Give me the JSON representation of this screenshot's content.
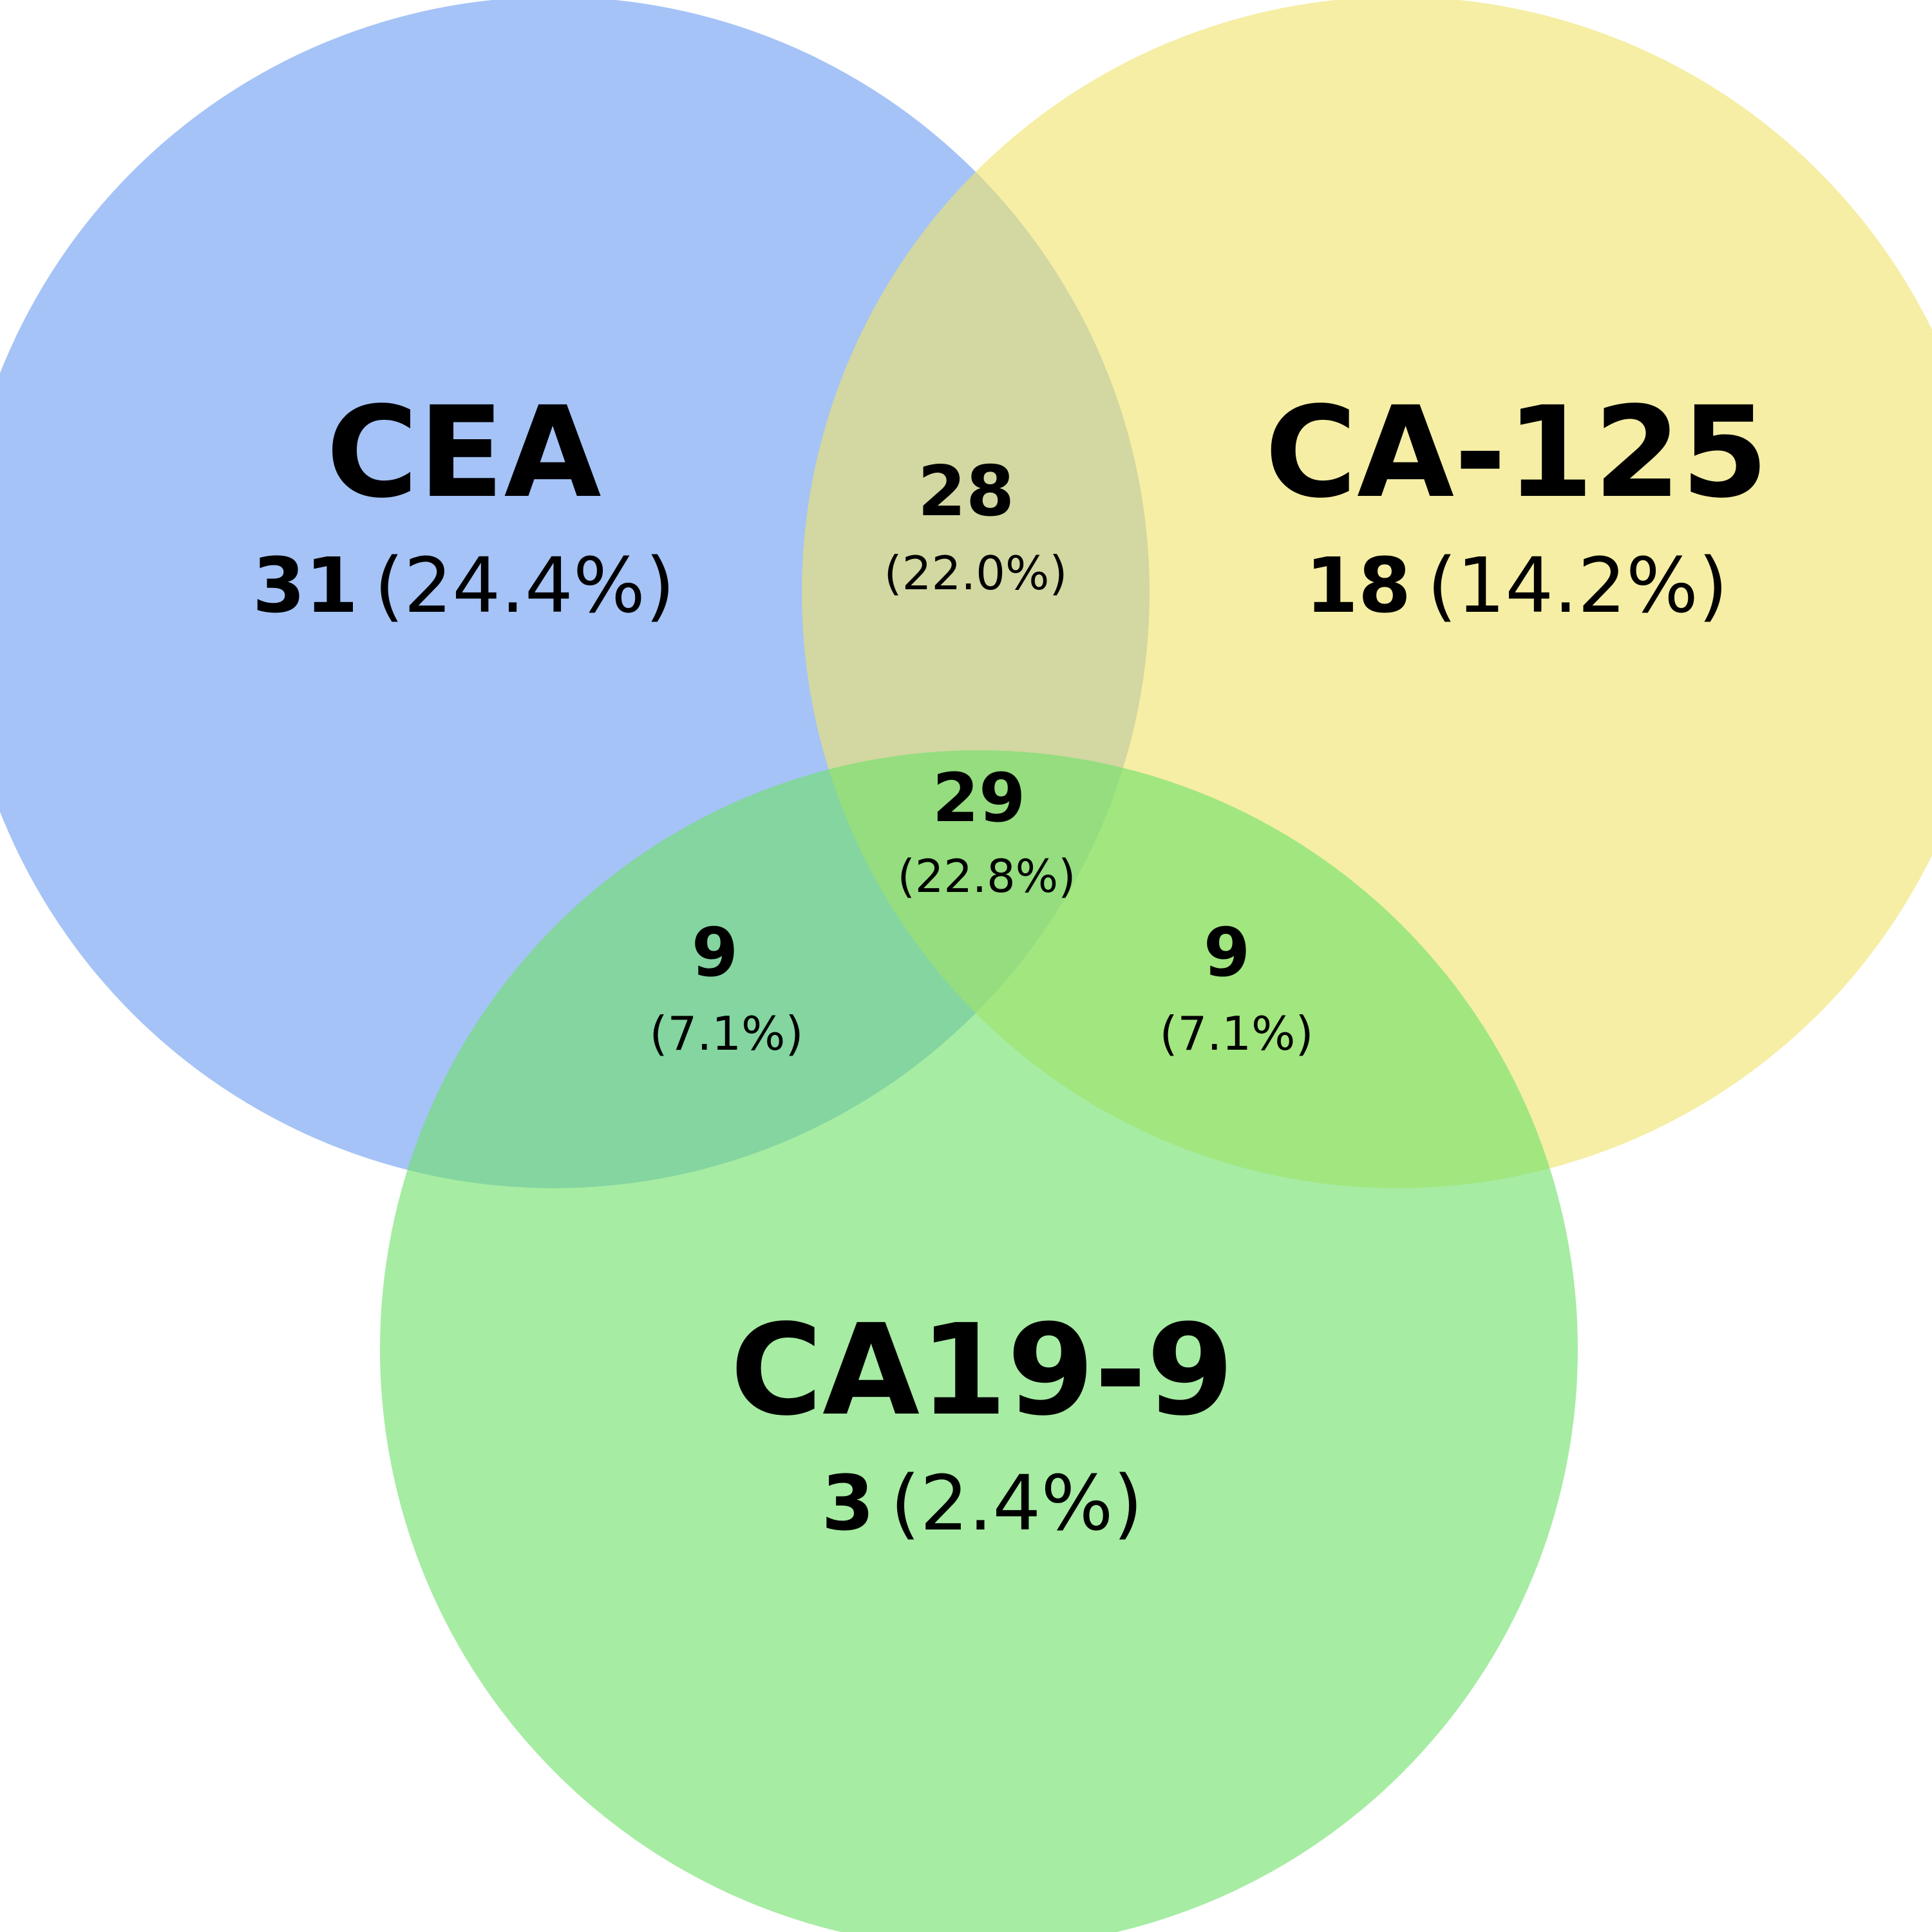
{
  "colors": {
    "CEA": "#6d9ef1",
    "CA-125": "#efe36c",
    "CA19-9": "#6fe06a",
    "text": "#000000",
    "background": "#ffffff"
  },
  "sets": {
    "cea": {
      "label": "CEA",
      "count": "31",
      "pct": "(24.4%)"
    },
    "ca125": {
      "label": "CA-125",
      "count": "18",
      "pct": "(14.2%)"
    },
    "ca199": {
      "label": "CA19-9",
      "count": "3",
      "pct": "(2.4%)"
    }
  },
  "intersections": {
    "cea_ca125": {
      "count": "28",
      "pct": "(22.0%)"
    },
    "all_three": {
      "count": "29",
      "pct": "(22.8%)"
    },
    "cea_ca199": {
      "count": "9",
      "pct": "(7.1%)"
    },
    "ca125_ca199": {
      "count": "9",
      "pct": "(7.1%)"
    }
  }
}
